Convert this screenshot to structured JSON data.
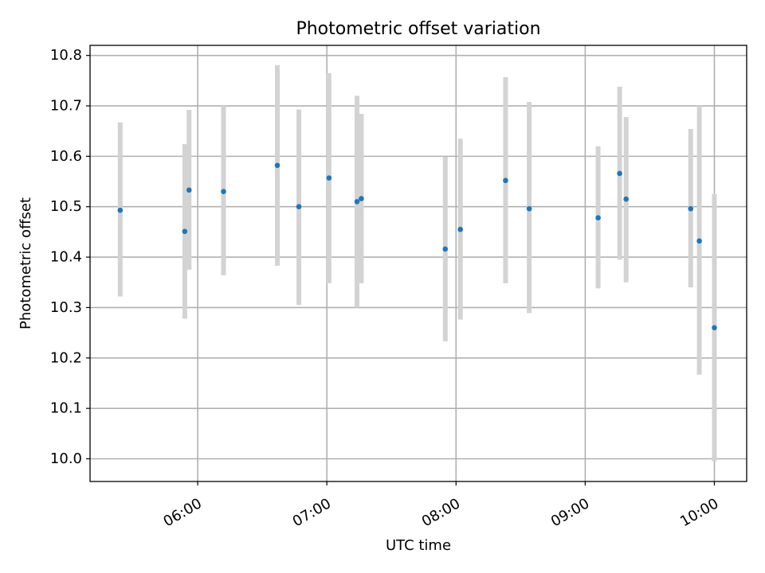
{
  "chart_data": {
    "type": "scatter",
    "title": "Photometric offset variation",
    "xlabel": "UTC time",
    "ylabel": "Photometric offset",
    "x_unit": "UTC time",
    "xlim": [
      "05:10",
      "10:15"
    ],
    "ylim": [
      9.955,
      10.82
    ],
    "grid": true,
    "legend": "none",
    "colors": {
      "points": "#1f77b4",
      "error_bars": "#d3d3d3",
      "grid": "#b0b0b0"
    },
    "x_ticks": [
      {
        "time": "06:00",
        "label": "06:00"
      },
      {
        "time": "07:00",
        "label": "07:00"
      },
      {
        "time": "08:00",
        "label": "08:00"
      },
      {
        "time": "09:00",
        "label": "09:00"
      },
      {
        "time": "10:00",
        "label": "10:00"
      }
    ],
    "y_ticks": [
      10.0,
      10.1,
      10.2,
      10.3,
      10.4,
      10.5,
      10.6,
      10.7,
      10.8
    ],
    "y_tick_labels": [
      "10.0",
      "10.1",
      "10.2",
      "10.3",
      "10.4",
      "10.5",
      "10.6",
      "10.7",
      "10.8"
    ],
    "points": [
      {
        "x": "05:24",
        "y": 10.493,
        "low": 10.322,
        "high": 10.667
      },
      {
        "x": "05:54",
        "y": 10.451,
        "low": 10.278,
        "high": 10.624
      },
      {
        "x": "05:56",
        "y": 10.533,
        "low": 10.375,
        "high": 10.692
      },
      {
        "x": "06:12",
        "y": 10.53,
        "low": 10.364,
        "high": 10.7
      },
      {
        "x": "06:37",
        "y": 10.582,
        "low": 10.383,
        "high": 10.781
      },
      {
        "x": "06:47",
        "y": 10.5,
        "low": 10.305,
        "high": 10.693
      },
      {
        "x": "07:01",
        "y": 10.557,
        "low": 10.348,
        "high": 10.765
      },
      {
        "x": "07:14",
        "y": 10.51,
        "low": 10.3,
        "high": 10.72
      },
      {
        "x": "07:16",
        "y": 10.516,
        "low": 10.348,
        "high": 10.684
      },
      {
        "x": "07:55",
        "y": 10.416,
        "low": 10.233,
        "high": 10.599
      },
      {
        "x": "08:02",
        "y": 10.455,
        "low": 10.276,
        "high": 10.635
      },
      {
        "x": "08:23",
        "y": 10.552,
        "low": 10.348,
        "high": 10.757
      },
      {
        "x": "08:34",
        "y": 10.496,
        "low": 10.289,
        "high": 10.708
      },
      {
        "x": "09:06",
        "y": 10.478,
        "low": 10.338,
        "high": 10.62
      },
      {
        "x": "09:16",
        "y": 10.566,
        "low": 10.395,
        "high": 10.738
      },
      {
        "x": "09:19",
        "y": 10.515,
        "low": 10.35,
        "high": 10.678
      },
      {
        "x": "09:49",
        "y": 10.496,
        "low": 10.34,
        "high": 10.654
      },
      {
        "x": "09:53",
        "y": 10.432,
        "low": 10.167,
        "high": 10.7
      },
      {
        "x": "10:00",
        "y": 10.26,
        "low": 9.995,
        "high": 10.525
      }
    ]
  }
}
